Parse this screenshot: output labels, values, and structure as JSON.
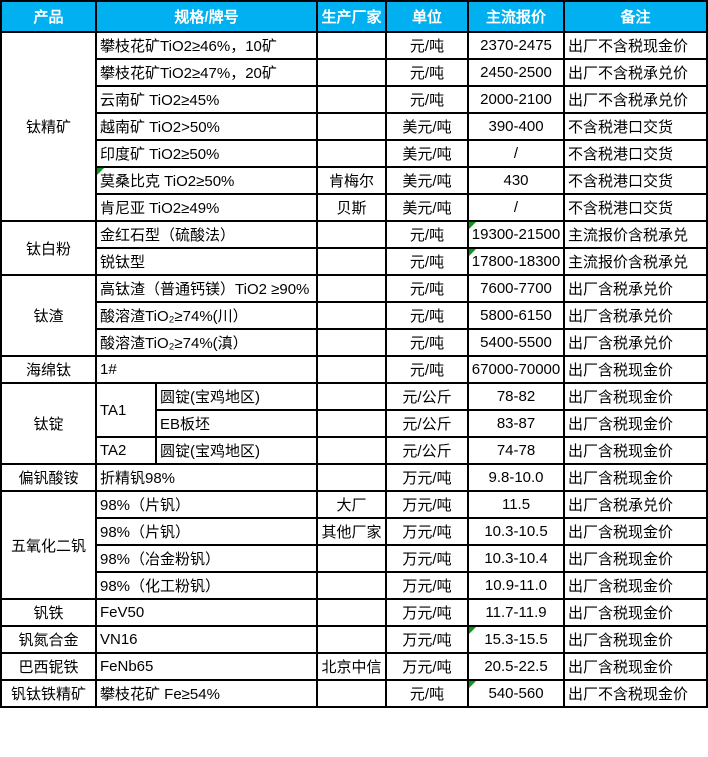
{
  "colors": {
    "header_bg": "#00B0F0",
    "header_text": "#FFFFFF",
    "grid": "#000000",
    "marker_green": "#0F9615",
    "cell_bg": "#FFFFFF"
  },
  "table": {
    "header": {
      "columns": [
        "产品",
        "规格/牌号",
        "生产厂家",
        "单位",
        "主流报价",
        "备注"
      ]
    },
    "rows": [
      [
        {
          "k": "product",
          "t": "钛精矿",
          "rs": 7
        },
        {
          "k": "spec",
          "t": "攀枝花矿TiO2≥46%，10矿",
          "cs": 2
        },
        {
          "k": "mfr",
          "t": ""
        },
        {
          "k": "unit",
          "t": "元/吨"
        },
        {
          "k": "price",
          "t": "2370-2475"
        },
        {
          "k": "note",
          "t": "出厂不含税现金价"
        }
      ],
      [
        {
          "k": "spec",
          "t": "攀枝花矿TiO2≥47%，20矿",
          "cs": 2
        },
        {
          "k": "mfr",
          "t": ""
        },
        {
          "k": "unit",
          "t": "元/吨"
        },
        {
          "k": "price",
          "t": "2450-2500"
        },
        {
          "k": "note",
          "t": "出厂不含税承兑价"
        }
      ],
      [
        {
          "k": "spec",
          "t": "云南矿 TiO2≥45%",
          "cs": 2
        },
        {
          "k": "mfr",
          "t": ""
        },
        {
          "k": "unit",
          "t": "元/吨"
        },
        {
          "k": "price",
          "t": "2000-2100"
        },
        {
          "k": "note",
          "t": "出厂不含税承兑价"
        }
      ],
      [
        {
          "k": "spec",
          "t": "越南矿 TiO2>50%",
          "cs": 2
        },
        {
          "k": "mfr",
          "t": ""
        },
        {
          "k": "unit",
          "t": "美元/吨"
        },
        {
          "k": "price",
          "t": "390-400"
        },
        {
          "k": "note",
          "t": "不含税港口交货"
        }
      ],
      [
        {
          "k": "spec",
          "t": "印度矿 TiO2≥50%",
          "cs": 2
        },
        {
          "k": "mfr",
          "t": ""
        },
        {
          "k": "unit",
          "t": "美元/吨"
        },
        {
          "k": "price",
          "t": "/"
        },
        {
          "k": "note",
          "t": "不含税港口交货"
        }
      ],
      [
        {
          "k": "spec",
          "t": "莫桑比克 TiO2≥50%",
          "cs": 2,
          "m": true
        },
        {
          "k": "mfr",
          "t": "肯梅尔"
        },
        {
          "k": "unit",
          "t": "美元/吨"
        },
        {
          "k": "price",
          "t": "430"
        },
        {
          "k": "note",
          "t": "不含税港口交货"
        }
      ],
      [
        {
          "k": "spec",
          "t": "肯尼亚 TiO2≥49%",
          "cs": 2
        },
        {
          "k": "mfr",
          "t": "贝斯"
        },
        {
          "k": "unit",
          "t": "美元/吨"
        },
        {
          "k": "price",
          "t": "/"
        },
        {
          "k": "note",
          "t": "不含税港口交货"
        }
      ],
      [
        {
          "k": "product",
          "t": "钛白粉",
          "rs": 2
        },
        {
          "k": "spec",
          "t": "金红石型（硫酸法）",
          "cs": 2
        },
        {
          "k": "mfr",
          "t": ""
        },
        {
          "k": "unit",
          "t": "元/吨"
        },
        {
          "k": "price",
          "t": "19300-21500",
          "m": true
        },
        {
          "k": "note",
          "t": "主流报价含税承兑"
        }
      ],
      [
        {
          "k": "spec",
          "t": "锐钛型",
          "cs": 2
        },
        {
          "k": "mfr",
          "t": ""
        },
        {
          "k": "unit",
          "t": "元/吨"
        },
        {
          "k": "price",
          "t": "17800-18300",
          "m": true
        },
        {
          "k": "note",
          "t": "主流报价含税承兑"
        }
      ],
      [
        {
          "k": "product",
          "t": "钛渣",
          "rs": 3
        },
        {
          "k": "spec",
          "t": "高钛渣（普通钙镁）TiO2 ≥90%",
          "cs": 2
        },
        {
          "k": "mfr",
          "t": ""
        },
        {
          "k": "unit",
          "t": "元/吨"
        },
        {
          "k": "price",
          "t": "7600-7700"
        },
        {
          "k": "note",
          "t": "出厂含税承兑价"
        }
      ],
      [
        {
          "k": "spec",
          "t": "酸溶渣TiO₂≥74%(川）",
          "cs": 2
        },
        {
          "k": "mfr",
          "t": ""
        },
        {
          "k": "unit",
          "t": "元/吨"
        },
        {
          "k": "price",
          "t": "5800-6150"
        },
        {
          "k": "note",
          "t": "出厂含税承兑价"
        }
      ],
      [
        {
          "k": "spec",
          "t": "酸溶渣TiO₂≥74%(滇）",
          "cs": 2
        },
        {
          "k": "mfr",
          "t": ""
        },
        {
          "k": "unit",
          "t": "元/吨"
        },
        {
          "k": "price",
          "t": "5400-5500"
        },
        {
          "k": "note",
          "t": "出厂含税承兑价"
        }
      ],
      [
        {
          "k": "product",
          "t": "海绵钛"
        },
        {
          "k": "spec",
          "t": "1#",
          "cs": 2
        },
        {
          "k": "mfr",
          "t": ""
        },
        {
          "k": "unit",
          "t": "元/吨"
        },
        {
          "k": "price",
          "t": "67000-70000"
        },
        {
          "k": "note",
          "t": "出厂含税现金价"
        }
      ],
      [
        {
          "k": "product",
          "t": "钛锭",
          "rs": 3
        },
        {
          "k": "speca",
          "t": "TA1",
          "rs": 2
        },
        {
          "k": "specb",
          "t": "圆锭(宝鸡地区)"
        },
        {
          "k": "mfr",
          "t": ""
        },
        {
          "k": "unit",
          "t": "元/公斤"
        },
        {
          "k": "price",
          "t": "78-82"
        },
        {
          "k": "note",
          "t": "出厂含税现金价"
        }
      ],
      [
        {
          "k": "specb",
          "t": "EB板坯"
        },
        {
          "k": "mfr",
          "t": ""
        },
        {
          "k": "unit",
          "t": "元/公斤"
        },
        {
          "k": "price",
          "t": "83-87"
        },
        {
          "k": "note",
          "t": "出厂含税现金价"
        }
      ],
      [
        {
          "k": "speca",
          "t": "TA2"
        },
        {
          "k": "specb",
          "t": "圆锭(宝鸡地区)"
        },
        {
          "k": "mfr",
          "t": ""
        },
        {
          "k": "unit",
          "t": "元/公斤"
        },
        {
          "k": "price",
          "t": "74-78"
        },
        {
          "k": "note",
          "t": "出厂含税现金价"
        }
      ],
      [
        {
          "k": "product",
          "t": "偏钒酸铵"
        },
        {
          "k": "spec",
          "t": "折精钒98%",
          "cs": 2
        },
        {
          "k": "mfr",
          "t": ""
        },
        {
          "k": "unit",
          "t": "万元/吨"
        },
        {
          "k": "price",
          "t": "9.8-10.0"
        },
        {
          "k": "note",
          "t": "出厂含税现金价"
        }
      ],
      [
        {
          "k": "product",
          "t": "五氧化二钒",
          "rs": 4
        },
        {
          "k": "spec",
          "t": "98%（片钒）",
          "cs": 2
        },
        {
          "k": "mfr",
          "t": "大厂"
        },
        {
          "k": "unit",
          "t": "万元/吨"
        },
        {
          "k": "price",
          "t": "11.5"
        },
        {
          "k": "note",
          "t": "出厂含税承兑价"
        }
      ],
      [
        {
          "k": "spec",
          "t": "98%（片钒）",
          "cs": 2
        },
        {
          "k": "mfr",
          "t": "其他厂家"
        },
        {
          "k": "unit",
          "t": "万元/吨"
        },
        {
          "k": "price",
          "t": "10.3-10.5"
        },
        {
          "k": "note",
          "t": "出厂含税现金价"
        }
      ],
      [
        {
          "k": "spec",
          "t": "98%（冶金粉钒）",
          "cs": 2
        },
        {
          "k": "mfr",
          "t": ""
        },
        {
          "k": "unit",
          "t": "万元/吨"
        },
        {
          "k": "price",
          "t": "10.3-10.4"
        },
        {
          "k": "note",
          "t": "出厂含税现金价"
        }
      ],
      [
        {
          "k": "spec",
          "t": "98%（化工粉钒）",
          "cs": 2
        },
        {
          "k": "mfr",
          "t": ""
        },
        {
          "k": "unit",
          "t": "万元/吨"
        },
        {
          "k": "price",
          "t": "10.9-11.0"
        },
        {
          "k": "note",
          "t": "出厂含税现金价"
        }
      ],
      [
        {
          "k": "product",
          "t": "钒铁"
        },
        {
          "k": "spec",
          "t": "FeV50",
          "cs": 2
        },
        {
          "k": "mfr",
          "t": ""
        },
        {
          "k": "unit",
          "t": "万元/吨"
        },
        {
          "k": "price",
          "t": "11.7-11.9"
        },
        {
          "k": "note",
          "t": "出厂含税现金价"
        }
      ],
      [
        {
          "k": "product",
          "t": "钒氮合金"
        },
        {
          "k": "spec",
          "t": "VN16",
          "cs": 2
        },
        {
          "k": "mfr",
          "t": ""
        },
        {
          "k": "unit",
          "t": "万元/吨"
        },
        {
          "k": "price",
          "t": "15.3-15.5",
          "m": true
        },
        {
          "k": "note",
          "t": "出厂含税现金价"
        }
      ],
      [
        {
          "k": "product",
          "t": "巴西铌铁"
        },
        {
          "k": "spec",
          "t": "FeNb65",
          "cs": 2
        },
        {
          "k": "mfr",
          "t": "北京中信"
        },
        {
          "k": "unit",
          "t": "万元/吨"
        },
        {
          "k": "price",
          "t": "20.5-22.5"
        },
        {
          "k": "note",
          "t": "出厂含税现金价"
        }
      ],
      [
        {
          "k": "product",
          "t": "钒钛铁精矿"
        },
        {
          "k": "spec",
          "t": "攀枝花矿 Fe≥54%",
          "cs": 2
        },
        {
          "k": "mfr",
          "t": ""
        },
        {
          "k": "unit",
          "t": "元/吨"
        },
        {
          "k": "price",
          "t": "540-560",
          "m": true
        },
        {
          "k": "note",
          "t": "出厂不含税现金价"
        }
      ]
    ]
  }
}
